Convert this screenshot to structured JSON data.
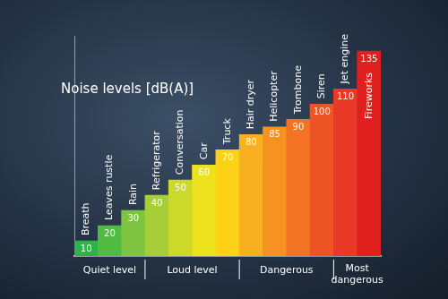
{
  "chart_data": {
    "type": "bar",
    "title": "Noise levels [dB(A)]",
    "categories": [
      "Breath",
      "Leaves rustle",
      "Rain",
      "Refrigerator",
      "Conversation",
      "Car",
      "Truck",
      "Hair dryer",
      "Helicopter",
      "Trombone",
      "Siren",
      "Jet engine",
      "Fireworks"
    ],
    "values": [
      10,
      20,
      30,
      40,
      50,
      60,
      70,
      80,
      85,
      90,
      100,
      110,
      135
    ],
    "colors": [
      "#2db34a",
      "#52bb42",
      "#7fc43e",
      "#a6cf37",
      "#cbd92a",
      "#ece21e",
      "#fcd116",
      "#f9b020",
      "#f69122",
      "#f37223",
      "#ee5525",
      "#e83a26",
      "#e0201f"
    ],
    "groups": [
      {
        "label": "Quiet level",
        "from": "Breath",
        "to": "Rain"
      },
      {
        "label": "Loud level",
        "from": "Refrigerator",
        "to": "Truck"
      },
      {
        "label": "Dangerous",
        "from": "Hair dryer",
        "to": "Siren"
      },
      {
        "label": "Most dangerous",
        "from": "Jet engine",
        "to": "Fireworks"
      }
    ],
    "ylim": [
      0,
      145
    ],
    "grid": false,
    "data_labels": true,
    "tick_labels": false
  }
}
